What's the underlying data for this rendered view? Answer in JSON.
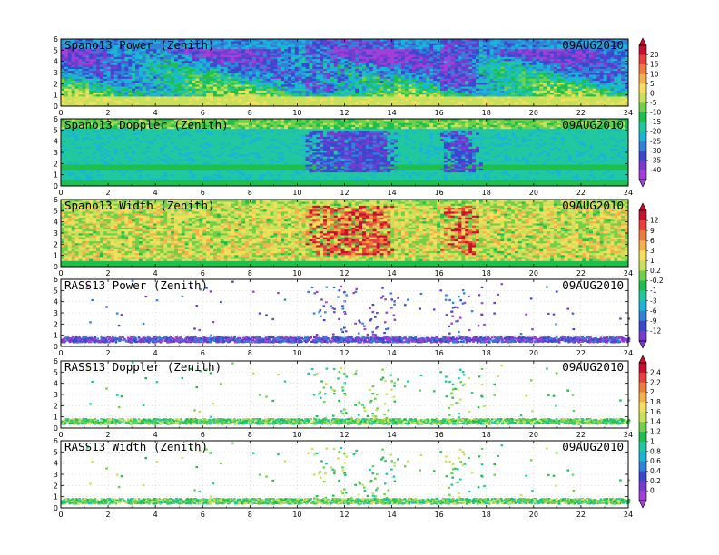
{
  "chart_data": [
    {
      "type": "heatmap",
      "title": "Spano13 Power (Zenith)",
      "date": "09AUG2010",
      "variable": "power",
      "xlim": [
        0,
        24
      ],
      "ylim": [
        0,
        6
      ],
      "xticks": [
        "0",
        "2",
        "4",
        "6",
        "8",
        "10",
        "12",
        "14",
        "16",
        "18",
        "20",
        "22",
        "24"
      ],
      "yticks": [
        "0",
        "1",
        "2",
        "3",
        "4",
        "5",
        "6"
      ]
    },
    {
      "type": "heatmap",
      "title": "Spano13 Doppler (Zenith)",
      "date": "09AUG2010",
      "variable": "doppler",
      "xlim": [
        0,
        24
      ],
      "ylim": [
        0,
        6
      ],
      "xticks": [
        "0",
        "2",
        "4",
        "6",
        "8",
        "10",
        "12",
        "14",
        "16",
        "18",
        "20",
        "22",
        "24"
      ],
      "yticks": [
        "0",
        "1",
        "2",
        "3",
        "4",
        "5",
        "6"
      ]
    },
    {
      "type": "heatmap",
      "title": "Spano13 Width (Zenith)",
      "date": "09AUG2010",
      "variable": "width",
      "xlim": [
        0,
        24
      ],
      "ylim": [
        0,
        6
      ],
      "xticks": [
        "0",
        "2",
        "4",
        "6",
        "8",
        "10",
        "12",
        "14",
        "16",
        "18",
        "20",
        "22",
        "24"
      ],
      "yticks": [
        "0",
        "1",
        "2",
        "3",
        "4",
        "5",
        "6"
      ]
    },
    {
      "type": "scatter",
      "title": "RASS13 Power (Zenith)",
      "date": "09AUG2010",
      "variable": "rass_power",
      "xlim": [
        0,
        24
      ],
      "ylim": [
        0,
        6
      ],
      "xticks": [
        "0",
        "2",
        "4",
        "6",
        "8",
        "10",
        "12",
        "14",
        "16",
        "18",
        "20",
        "22",
        "24"
      ],
      "yticks": [
        "0",
        "1",
        "2",
        "3",
        "4",
        "5",
        "6"
      ]
    },
    {
      "type": "scatter",
      "title": "RASS13 Doppler (Zenith)",
      "date": "09AUG2010",
      "variable": "rass_doppler",
      "xlim": [
        0,
        24
      ],
      "ylim": [
        0,
        6
      ],
      "xticks": [
        "0",
        "2",
        "4",
        "6",
        "8",
        "10",
        "12",
        "14",
        "16",
        "18",
        "20",
        "22",
        "24"
      ],
      "yticks": [
        "0",
        "1",
        "2",
        "3",
        "4",
        "5",
        "6"
      ]
    },
    {
      "type": "scatter",
      "title": "RASS13 Width (Zenith)",
      "date": "09AUG2010",
      "variable": "rass_width",
      "xlim": [
        0,
        24
      ],
      "ylim": [
        0,
        6
      ],
      "xticks": [
        "0",
        "2",
        "4",
        "6",
        "8",
        "10",
        "12",
        "14",
        "16",
        "18",
        "20",
        "22",
        "24"
      ],
      "yticks": [
        "0",
        "1",
        "2",
        "3",
        "4",
        "5",
        "6"
      ]
    }
  ],
  "colorbars": [
    {
      "labels": [
        "20",
        "15",
        "10",
        "5",
        "0",
        "-5",
        "-10",
        "-15",
        "-20",
        "-25",
        "-30",
        "-35",
        "-40"
      ],
      "colors": [
        "#c8102e",
        "#e8403a",
        "#f07c3c",
        "#f6b04a",
        "#f5de5a",
        "#c8e05a",
        "#70d048",
        "#1fbf4e",
        "#20c8a0",
        "#1ab4d8",
        "#2f82d8",
        "#3a48d0",
        "#7a3ad0",
        "#a040d8"
      ]
    },
    {
      "labels": [
        "12",
        "9",
        "6",
        "3",
        "1",
        "0.2",
        "-0.2",
        "-1",
        "-3",
        "-6",
        "-9",
        "-12"
      ],
      "colors": [
        "#c8102e",
        "#e8403a",
        "#f07c3c",
        "#f6b04a",
        "#f5de5a",
        "#c8e05a",
        "#70d048",
        "#1fbf4e",
        "#20c8a0",
        "#1ab4d8",
        "#2f82d8",
        "#3a48d0",
        "#7a3ad0"
      ]
    },
    {
      "labels": [
        "2.4",
        "2.2",
        "2",
        "1.8",
        "1.6",
        "1.4",
        "1.2",
        "1",
        "0.8",
        "0.6",
        "0.4",
        "0.2",
        "0"
      ],
      "colors": [
        "#c8102e",
        "#e8403a",
        "#f07c3c",
        "#f6b04a",
        "#f5de5a",
        "#c8e05a",
        "#70d048",
        "#1fbf4e",
        "#20c8a0",
        "#1ab4d8",
        "#2f82d8",
        "#3a48d0",
        "#7a3ad0",
        "#a040d8"
      ]
    }
  ]
}
